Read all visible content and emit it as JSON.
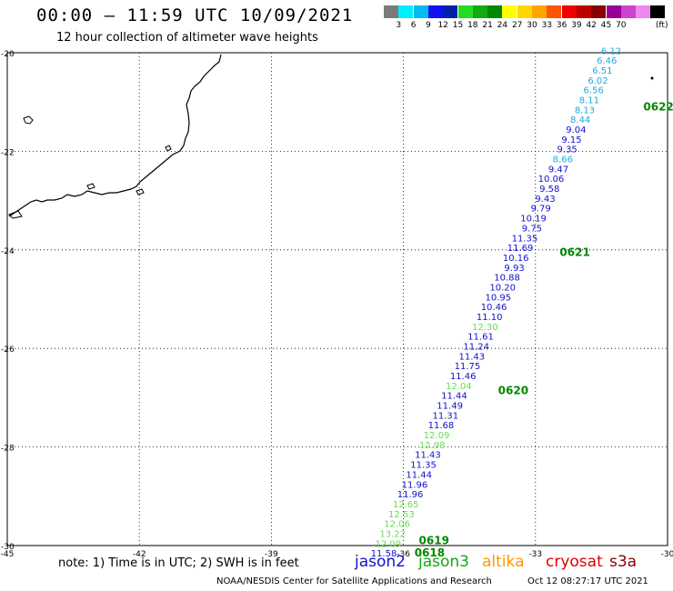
{
  "header": {
    "title": "00:00 – 11:59 UTC 10/09/2021",
    "subtitle": "12 hour collection of altimeter wave heights"
  },
  "colorbar": {
    "colors": [
      "#7a7a7a",
      "#00eeff",
      "#00bbee",
      "#1111ee",
      "#0022aa",
      "#22dd22",
      "#11aa11",
      "#008800",
      "#ffff00",
      "#ffd700",
      "#ffa500",
      "#ff5500",
      "#ee0000",
      "#bb0000",
      "#880000",
      "#990099",
      "#cc44cc",
      "#ee88ee",
      "#000000"
    ],
    "tick_labels": [
      "3",
      "6",
      "9",
      "12",
      "15",
      "18",
      "21",
      "24",
      "27",
      "30",
      "33",
      "36",
      "39",
      "42",
      "45",
      "70"
    ],
    "unit": "(ft)"
  },
  "map": {
    "lat_labels": [
      "-20",
      "-22",
      "-24",
      "-26",
      "-28",
      "-30"
    ],
    "lon_labels": [
      "-45",
      "-42",
      "-39",
      "-36",
      "-33",
      "-30"
    ],
    "lat_range": [
      -30,
      -20
    ],
    "lon_range": [
      -45,
      -30
    ],
    "grid": true
  },
  "track": {
    "points": [
      {
        "v": "6.12",
        "lat": -19.95,
        "lon": -31.05,
        "color": "#22aadd"
      },
      {
        "v": "6.46",
        "lat": -20.15,
        "lon": -31.15,
        "color": "#22aadd"
      },
      {
        "v": "6.51",
        "lat": -20.35,
        "lon": -31.25,
        "color": "#22aadd"
      },
      {
        "v": "6.02",
        "lat": -20.55,
        "lon": -31.35,
        "color": "#22aadd"
      },
      {
        "v": "6.56",
        "lat": -20.75,
        "lon": -31.45,
        "color": "#22aadd"
      },
      {
        "v": "8.11",
        "lat": -20.95,
        "lon": -31.55,
        "color": "#22aadd"
      },
      {
        "v": "8.13",
        "lat": -21.15,
        "lon": -31.65,
        "color": "#22aadd"
      },
      {
        "v": "8.44",
        "lat": -21.35,
        "lon": -31.75,
        "color": "#22aadd"
      },
      {
        "v": "9.04",
        "lat": -21.55,
        "lon": -31.85,
        "color": "#1111cc"
      },
      {
        "v": "9.15",
        "lat": -21.75,
        "lon": -31.95,
        "color": "#1111cc"
      },
      {
        "v": "9.35",
        "lat": -21.95,
        "lon": -32.05,
        "color": "#1111cc"
      },
      {
        "v": "8.66",
        "lat": -22.15,
        "lon": -32.15,
        "color": "#22aadd"
      },
      {
        "v": "9.47",
        "lat": -22.35,
        "lon": -32.25,
        "color": "#1111cc"
      },
      {
        "v": "10.06",
        "lat": -22.55,
        "lon": -32.35,
        "color": "#1111cc"
      },
      {
        "v": "9.58",
        "lat": -22.75,
        "lon": -32.45,
        "color": "#1111cc"
      },
      {
        "v": "9.43",
        "lat": -22.95,
        "lon": -32.55,
        "color": "#1111cc"
      },
      {
        "v": "9.79",
        "lat": -23.15,
        "lon": -32.65,
        "color": "#1111cc"
      },
      {
        "v": "10.19",
        "lat": -23.35,
        "lon": -32.75,
        "color": "#1111cc"
      },
      {
        "v": "9.75",
        "lat": -23.55,
        "lon": -32.85,
        "color": "#1111cc"
      },
      {
        "v": "11.35",
        "lat": -23.75,
        "lon": -32.95,
        "color": "#1111cc"
      },
      {
        "v": "11.69",
        "lat": -23.95,
        "lon": -33.05,
        "color": "#1111cc"
      },
      {
        "v": "10.16",
        "lat": -24.15,
        "lon": -33.15,
        "color": "#1111cc"
      },
      {
        "v": "9.93",
        "lat": -24.35,
        "lon": -33.25,
        "color": "#1111cc"
      },
      {
        "v": "10.88",
        "lat": -24.55,
        "lon": -33.35,
        "color": "#1111cc"
      },
      {
        "v": "10.20",
        "lat": -24.75,
        "lon": -33.45,
        "color": "#1111cc"
      },
      {
        "v": "10.95",
        "lat": -24.95,
        "lon": -33.55,
        "color": "#1111cc"
      },
      {
        "v": "10.46",
        "lat": -25.15,
        "lon": -33.65,
        "color": "#1111cc"
      },
      {
        "v": "11.10",
        "lat": -25.35,
        "lon": -33.75,
        "color": "#1111cc"
      },
      {
        "v": "12.30",
        "lat": -25.55,
        "lon": -33.85,
        "color": "#66dd55"
      },
      {
        "v": "11.61",
        "lat": -25.75,
        "lon": -33.95,
        "color": "#1111cc"
      },
      {
        "v": "11.24",
        "lat": -25.95,
        "lon": -34.05,
        "color": "#1111cc"
      },
      {
        "v": "11.43",
        "lat": -26.15,
        "lon": -34.15,
        "color": "#1111cc"
      },
      {
        "v": "11.75",
        "lat": -26.35,
        "lon": -34.25,
        "color": "#1111cc"
      },
      {
        "v": "11.46",
        "lat": -26.55,
        "lon": -34.35,
        "color": "#1111cc"
      },
      {
        "v": "12.04",
        "lat": -26.75,
        "lon": -34.45,
        "color": "#66dd55"
      },
      {
        "v": "11.44",
        "lat": -26.95,
        "lon": -34.55,
        "color": "#1111cc"
      },
      {
        "v": "11.49",
        "lat": -27.15,
        "lon": -34.65,
        "color": "#1111cc"
      },
      {
        "v": "11.31",
        "lat": -27.35,
        "lon": -34.75,
        "color": "#1111cc"
      },
      {
        "v": "11.68",
        "lat": -27.55,
        "lon": -34.85,
        "color": "#1111cc"
      },
      {
        "v": "12.09",
        "lat": -27.75,
        "lon": -34.95,
        "color": "#66dd55"
      },
      {
        "v": "12.98",
        "lat": -27.95,
        "lon": -35.05,
        "color": "#66dd55"
      },
      {
        "v": "11.43",
        "lat": -28.15,
        "lon": -35.15,
        "color": "#1111cc"
      },
      {
        "v": "11.35",
        "lat": -28.35,
        "lon": -35.25,
        "color": "#1111cc"
      },
      {
        "v": "11.44",
        "lat": -28.55,
        "lon": -35.35,
        "color": "#1111cc"
      },
      {
        "v": "11.96",
        "lat": -28.75,
        "lon": -35.45,
        "color": "#1111cc"
      },
      {
        "v": "11.96",
        "lat": -28.95,
        "lon": -35.55,
        "color": "#1111cc"
      },
      {
        "v": "12.65",
        "lat": -29.15,
        "lon": -35.65,
        "color": "#66dd55"
      },
      {
        "v": "12.53",
        "lat": -29.35,
        "lon": -35.75,
        "color": "#66dd55"
      },
      {
        "v": "12.06",
        "lat": -29.55,
        "lon": -35.85,
        "color": "#66dd55"
      },
      {
        "v": "13.22",
        "lat": -29.75,
        "lon": -35.95,
        "color": "#66dd55"
      },
      {
        "v": "12.09",
        "lat": -29.95,
        "lon": -36.05,
        "color": "#66dd55"
      },
      {
        "v": "11.58",
        "lat": -30.15,
        "lon": -36.15,
        "color": "#1111cc"
      }
    ],
    "time_markers": [
      {
        "label": "0622",
        "lat": -21.1,
        "lon": -30.55
      },
      {
        "label": "0621",
        "lat": -24.05,
        "lon": -32.45
      },
      {
        "label": "0620",
        "lat": -26.85,
        "lon": -33.85
      },
      {
        "label": "0619",
        "lat": -29.9,
        "lon": -35.65
      },
      {
        "label": "0618",
        "lat": -30.15,
        "lon": -35.75
      }
    ]
  },
  "footer": {
    "note": "note: 1) Time is in UTC; 2) SWH is in feet",
    "legend": [
      {
        "name": "jason2",
        "color": "#1111cc"
      },
      {
        "name": "jason3",
        "color": "#11aa11"
      },
      {
        "name": "altika",
        "color": "#ff9900"
      },
      {
        "name": "cryosat",
        "color": "#dd0000"
      },
      {
        "name": "s3a",
        "color": "#880000"
      }
    ],
    "credit": "NOAA/NESDIS Center for Satellite Applications and Research",
    "timestamp": "Oct 12 08:27:17 UTC 2021"
  }
}
